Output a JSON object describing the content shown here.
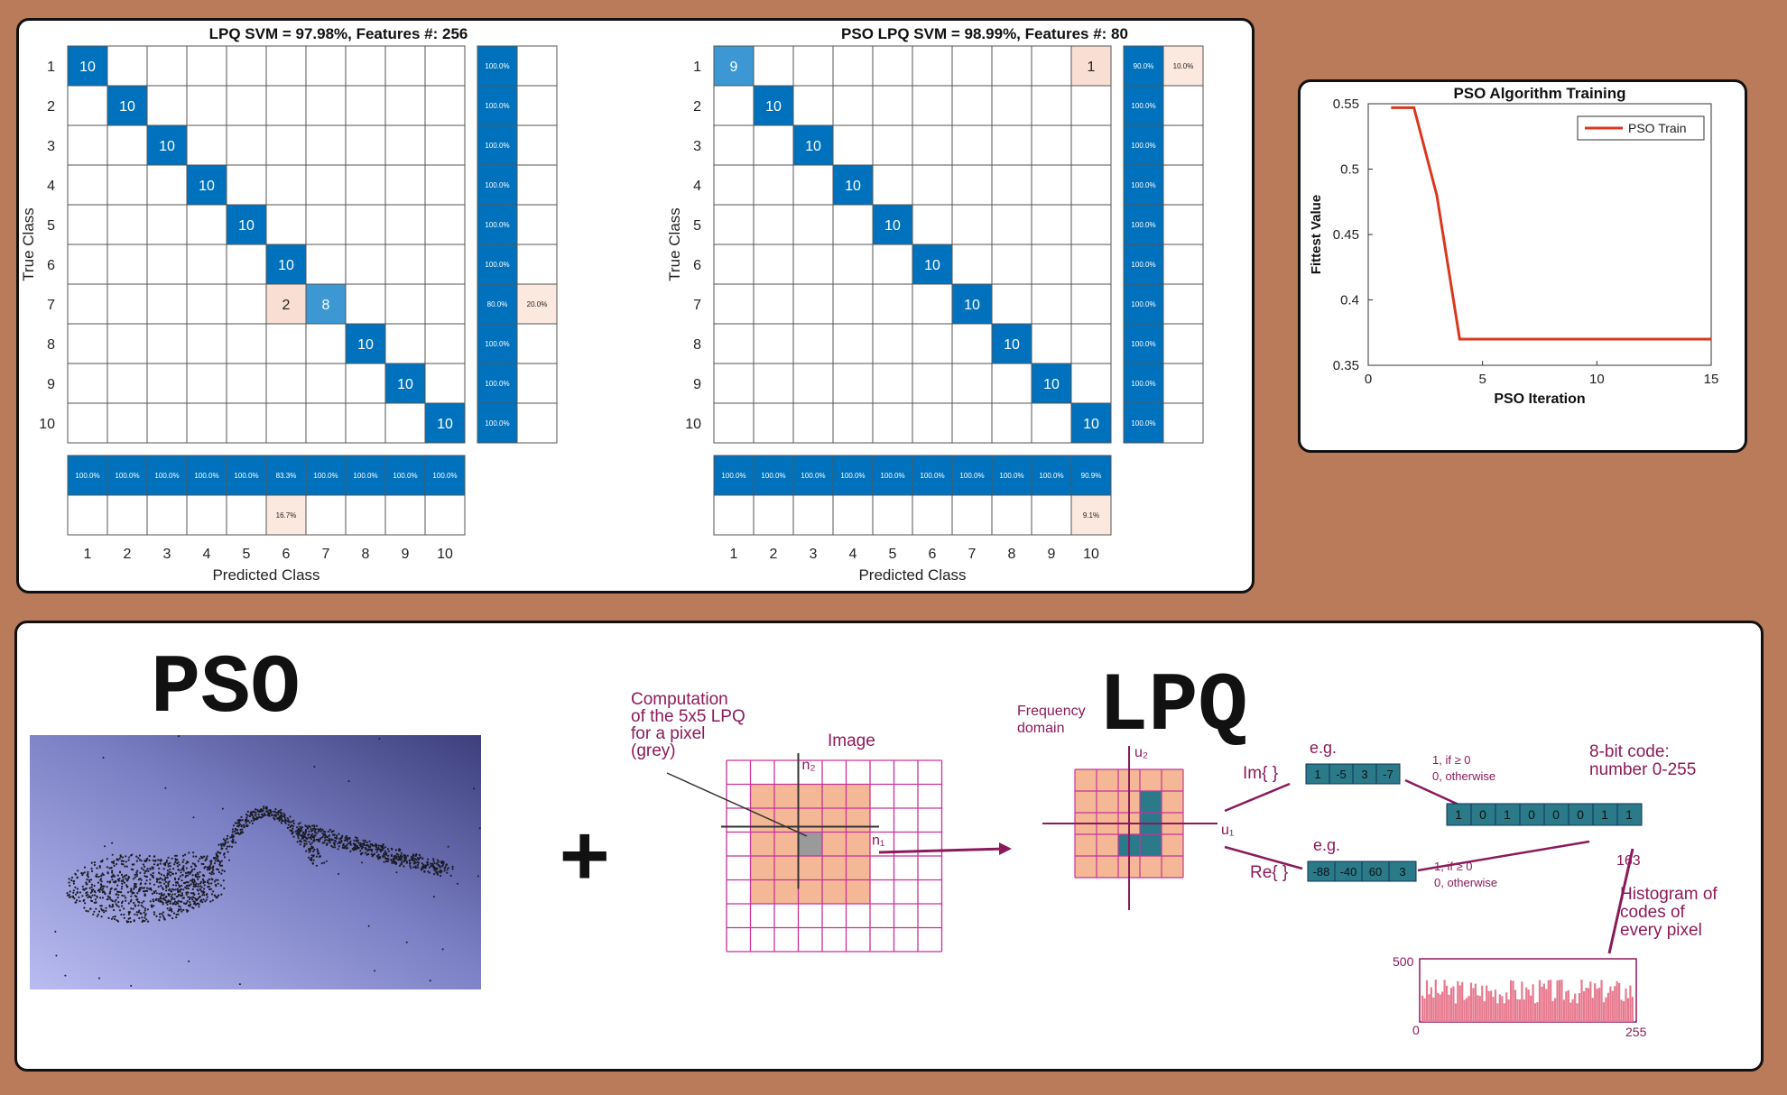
{
  "colors": {
    "diag": "#0072bd",
    "mid": "#3c97d3",
    "err": "#f8ded3",
    "light": "#fbe8df",
    "line": "#d9381e",
    "grid": "#c7339a",
    "peach": "#f4b896",
    "teal": "#2a7a8a",
    "dark": "#8b1a5b"
  },
  "chart_data": [
    {
      "type": "heatmap",
      "id": "lpq",
      "title": "LPQ SVM =  97.98%, Features #: 256",
      "xlabel": "Predicted Class",
      "ylabel": "True Class",
      "classes": [
        "1",
        "2",
        "3",
        "4",
        "5",
        "6",
        "7",
        "8",
        "9",
        "10"
      ],
      "cells": [
        {
          "r": 0,
          "c": 0,
          "v": 10
        },
        {
          "r": 1,
          "c": 1,
          "v": 10
        },
        {
          "r": 2,
          "c": 2,
          "v": 10
        },
        {
          "r": 3,
          "c": 3,
          "v": 10
        },
        {
          "r": 4,
          "c": 4,
          "v": 10
        },
        {
          "r": 5,
          "c": 5,
          "v": 10
        },
        {
          "r": 6,
          "c": 5,
          "v": 2
        },
        {
          "r": 6,
          "c": 6,
          "v": 8
        },
        {
          "r": 7,
          "c": 7,
          "v": 10
        },
        {
          "r": 8,
          "c": 8,
          "v": 10
        },
        {
          "r": 9,
          "c": 9,
          "v": 10
        }
      ],
      "row_correct": [
        "100.0%",
        "100.0%",
        "100.0%",
        "100.0%",
        "100.0%",
        "100.0%",
        "80.0%",
        "100.0%",
        "100.0%",
        "100.0%"
      ],
      "row_error": [
        "",
        "",
        "",
        "",
        "",
        "",
        "20.0%",
        "",
        "",
        ""
      ],
      "col_correct": [
        "100.0%",
        "100.0%",
        "100.0%",
        "100.0%",
        "100.0%",
        "83.3%",
        "100.0%",
        "100.0%",
        "100.0%",
        "100.0%"
      ],
      "col_error": [
        "",
        "",
        "",
        "",
        "",
        "16.7%",
        "",
        "",
        "",
        ""
      ]
    },
    {
      "type": "heatmap",
      "id": "pso",
      "title": "PSO LPQ SVM =  98.99%, Features #: 80",
      "xlabel": "Predicted Class",
      "ylabel": "True Class",
      "classes": [
        "1",
        "2",
        "3",
        "4",
        "5",
        "6",
        "7",
        "8",
        "9",
        "10"
      ],
      "cells": [
        {
          "r": 0,
          "c": 0,
          "v": 9
        },
        {
          "r": 0,
          "c": 9,
          "v": 1
        },
        {
          "r": 1,
          "c": 1,
          "v": 10
        },
        {
          "r": 2,
          "c": 2,
          "v": 10
        },
        {
          "r": 3,
          "c": 3,
          "v": 10
        },
        {
          "r": 4,
          "c": 4,
          "v": 10
        },
        {
          "r": 5,
          "c": 5,
          "v": 10
        },
        {
          "r": 6,
          "c": 6,
          "v": 10
        },
        {
          "r": 7,
          "c": 7,
          "v": 10
        },
        {
          "r": 8,
          "c": 8,
          "v": 10
        },
        {
          "r": 9,
          "c": 9,
          "v": 10
        }
      ],
      "row_correct": [
        "90.0%",
        "100.0%",
        "100.0%",
        "100.0%",
        "100.0%",
        "100.0%",
        "100.0%",
        "100.0%",
        "100.0%",
        "100.0%"
      ],
      "row_error": [
        "10.0%",
        "",
        "",
        "",
        "",
        "",
        "",
        "",
        "",
        ""
      ],
      "col_correct": [
        "100.0%",
        "100.0%",
        "100.0%",
        "100.0%",
        "100.0%",
        "100.0%",
        "100.0%",
        "100.0%",
        "100.0%",
        "90.9%"
      ],
      "col_error": [
        "",
        "",
        "",
        "",
        "",
        "",
        "",
        "",
        "",
        "9.1%"
      ]
    },
    {
      "type": "line",
      "id": "train",
      "title": "PSO Algorithm Training",
      "xlabel": "PSO Iteration",
      "ylabel": "Fittest Value",
      "xlim": [
        0,
        15
      ],
      "ylim": [
        0.35,
        0.55
      ],
      "xticks": [
        "0",
        "5",
        "10",
        "15"
      ],
      "yticks": [
        "0.35",
        "0.4",
        "0.45",
        "0.5",
        "0.55"
      ],
      "series": [
        {
          "name": "PSO Train",
          "x": [
            1,
            2,
            3,
            4,
            5,
            6,
            7,
            8,
            9,
            10,
            11,
            12,
            13,
            14,
            15
          ],
          "y": [
            0.547,
            0.547,
            0.48,
            0.37,
            0.37,
            0.37,
            0.37,
            0.37,
            0.37,
            0.37,
            0.37,
            0.37,
            0.37,
            0.37,
            0.37
          ]
        }
      ],
      "legend": "top-right"
    }
  ],
  "bottom": {
    "pso_title": "PSO",
    "plus": "+",
    "lpq_title": "LPQ",
    "comp_lines": [
      "Computation",
      "of the 5x5 LPQ",
      "for a pixel",
      "(grey)"
    ],
    "image_label": "Image",
    "n2": "n₂",
    "n1": "n₁",
    "freq_lines": [
      "Frequency",
      "domain"
    ],
    "u2": "u₂",
    "u1": "u₁",
    "im_label": "Im{ }",
    "re_label": "Re{ }",
    "eg1": "e.g.",
    "eg2": "e.g.",
    "im_vals": [
      "1",
      "-5",
      "3",
      "-7"
    ],
    "re_vals": [
      "-88",
      "-40",
      "60",
      "3"
    ],
    "rule_top": [
      "1,   if ≥ 0",
      "0,   otherwise"
    ],
    "rule_bot": [
      "1,   if ≥ 0",
      "0,   otherwise"
    ],
    "code_label": [
      "8-bit code:",
      "number 0-255"
    ],
    "bits": [
      "1",
      "0",
      "1",
      "0",
      "0",
      "0",
      "1",
      "1"
    ],
    "code_value": "163",
    "hist_label": [
      "Histogram of",
      "codes of",
      "every pixel"
    ],
    "hist_y": "500",
    "hist_zero": "0",
    "hist_max": "255"
  }
}
